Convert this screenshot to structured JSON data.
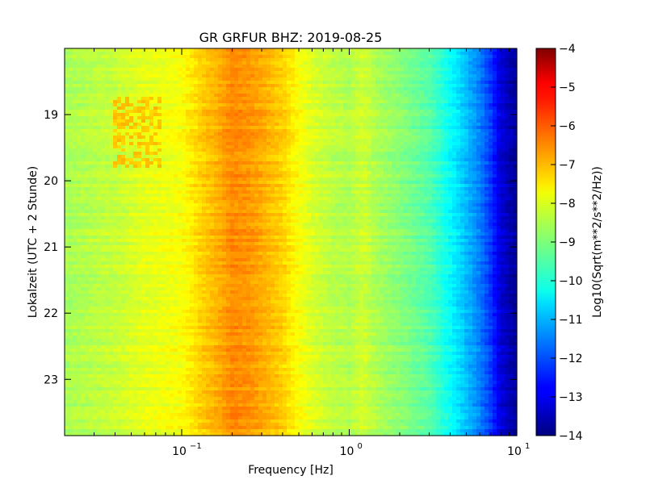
{
  "chart_data": {
    "type": "heatmap",
    "title": "GR GRFUR BHZ: 2019-08-25",
    "xlabel": "Frequency [Hz]",
    "ylabel": "Lokalzeit (UTC + 2 Stunde)",
    "x_scale": "log",
    "xlim": [
      0.02,
      10
    ],
    "x_ticks": [
      {
        "value": 0.1,
        "base": "10",
        "exp": "-1"
      },
      {
        "value": 1,
        "base": "10",
        "exp": "0"
      },
      {
        "value": 10,
        "base": "10",
        "exp": "1"
      }
    ],
    "ylim": [
      18.0,
      23.85
    ],
    "y_inverted": true,
    "y_ticks": [
      {
        "value": 19,
        "label": "19"
      },
      {
        "value": 20,
        "label": "20"
      },
      {
        "value": 21,
        "label": "21"
      },
      {
        "value": 22,
        "label": "22"
      },
      {
        "value": 23,
        "label": "23"
      }
    ],
    "profile": {
      "frequency_hz": [
        0.02,
        0.04,
        0.06,
        0.08,
        0.1,
        0.13,
        0.16,
        0.2,
        0.25,
        0.3,
        0.4,
        0.5,
        0.6,
        0.8,
        1.0,
        1.2,
        1.5,
        2.0,
        3.0,
        4.0,
        5.0,
        6.0,
        7.0,
        8.0,
        10.0
      ],
      "log10_psd": [
        -8.6,
        -8.3,
        -8.0,
        -7.9,
        -7.8,
        -7.3,
        -7.0,
        -6.6,
        -6.7,
        -6.9,
        -7.3,
        -7.8,
        -8.1,
        -8.4,
        -8.5,
        -8.2,
        -8.6,
        -8.9,
        -9.4,
        -10.2,
        -10.9,
        -11.5,
        -12.2,
        -13.1,
        -13.8
      ]
    },
    "features": [
      {
        "label": "",
        "freq_range_hz": [
          0.04,
          0.075
        ],
        "time_range_h": [
          18.7,
          19.8
        ],
        "log10_psd": -7.2
      }
    ],
    "colorbar": {
      "label": "Log10(Sqrt(m**2/s**2/Hz))",
      "min": -14,
      "max": -4,
      "colormap": "jet",
      "ticks": [
        {
          "value": -4,
          "label": "−4"
        },
        {
          "value": -5,
          "label": "−5"
        },
        {
          "value": -6,
          "label": "−6"
        },
        {
          "value": -7,
          "label": "−7"
        },
        {
          "value": -8,
          "label": "−8"
        },
        {
          "value": -9,
          "label": "−9"
        },
        {
          "value": -10,
          "label": "−10"
        },
        {
          "value": -11,
          "label": "−11"
        },
        {
          "value": -12,
          "label": "−12"
        },
        {
          "value": -13,
          "label": "−13"
        },
        {
          "value": -14,
          "label": "−14"
        }
      ]
    },
    "grid": false
  }
}
